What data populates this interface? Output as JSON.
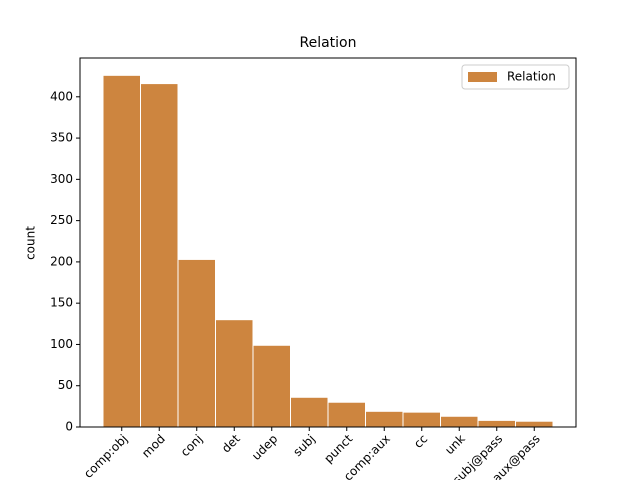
{
  "chart_data": {
    "type": "bar",
    "title": "Relation",
    "y_label": "count",
    "categories": [
      "comp:obj",
      "mod",
      "conj",
      "det",
      "udep",
      "subj",
      "punct",
      "comp:aux",
      "cc",
      "unk",
      "subj@pass",
      "aux@pass"
    ],
    "series": [
      {
        "name": "Relation",
        "color": "#cd853f",
        "values": [
          426,
          416,
          203,
          130,
          99,
          36,
          30,
          19,
          18,
          13,
          8,
          7
        ]
      }
    ],
    "ylim": [
      0,
      447
    ],
    "yticks": [
      0,
      50,
      100,
      150,
      200,
      250,
      300,
      350,
      400
    ],
    "legend": "upper right"
  }
}
